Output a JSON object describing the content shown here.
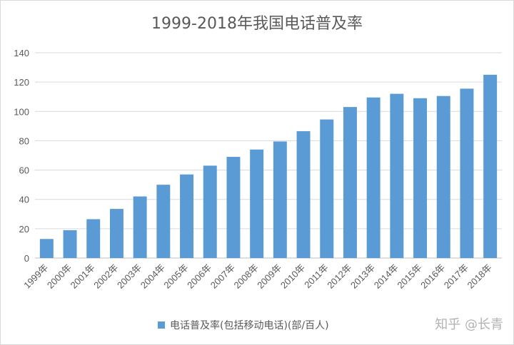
{
  "chart_data": {
    "type": "bar",
    "title": "1999-2018年我国电话普及率",
    "categories": [
      "1999年",
      "2000年",
      "2001年",
      "2002年",
      "2003年",
      "2004年",
      "2005年",
      "2006年",
      "2007年",
      "2008年",
      "2009年",
      "2010年",
      "2011年",
      "2012年",
      "2013年",
      "2014年",
      "2015年",
      "2016年",
      "2017年",
      "2018年"
    ],
    "series": [
      {
        "name": "电话普及率(包括移动电话)(部/百人)",
        "values": [
          13,
          19,
          26.5,
          33.5,
          42,
          50,
          57,
          63,
          69,
          74,
          79.5,
          86.5,
          94.5,
          103,
          109.5,
          112,
          109,
          110.5,
          115.5,
          125
        ],
        "color": "#5b9bd5"
      }
    ],
    "ylim": [
      0,
      140
    ],
    "yticks": [
      0,
      20,
      40,
      60,
      80,
      100,
      120,
      140
    ],
    "grid": true,
    "legend_position": "bottom"
  },
  "watermark": "知乎 @长青"
}
